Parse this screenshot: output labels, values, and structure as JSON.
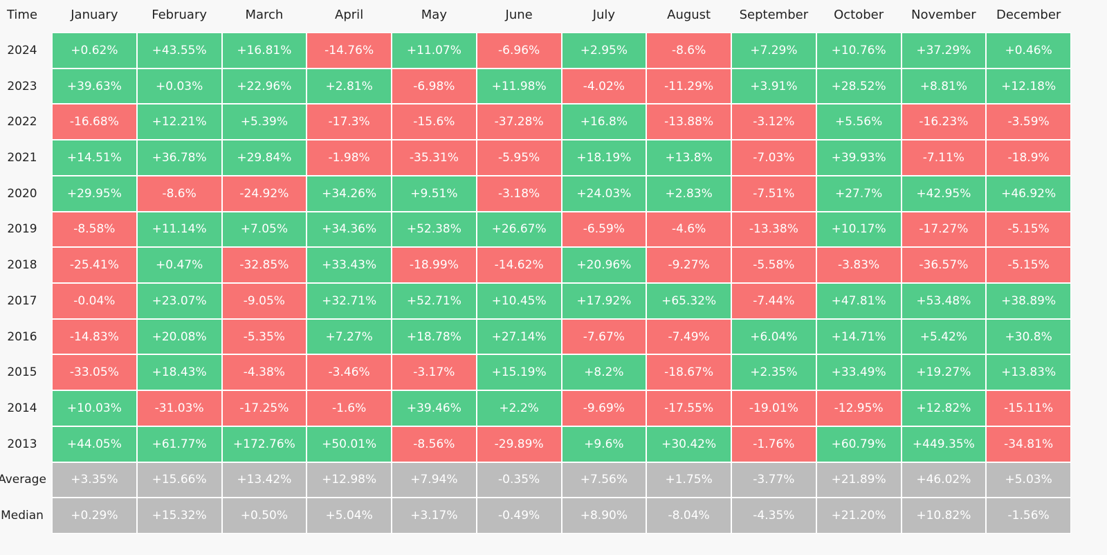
{
  "table": {
    "colors": {
      "up": "#52cc8a",
      "down": "#f87373",
      "summary": "#bcbcbc"
    },
    "header": [
      "Time",
      "January",
      "February",
      "March",
      "April",
      "May",
      "June",
      "July",
      "August",
      "September",
      "October",
      "November",
      "December"
    ],
    "rows": [
      [
        "2024",
        "+0.62%",
        "+43.55%",
        "+16.81%",
        "-14.76%",
        "+11.07%",
        "-6.96%",
        "+2.95%",
        "-8.6%",
        "+7.29%",
        "+10.76%",
        "+37.29%",
        "+0.46%"
      ],
      [
        "2023",
        "+39.63%",
        "+0.03%",
        "+22.96%",
        "+2.81%",
        "-6.98%",
        "+11.98%",
        "-4.02%",
        "-11.29%",
        "+3.91%",
        "+28.52%",
        "+8.81%",
        "+12.18%"
      ],
      [
        "2022",
        "-16.68%",
        "+12.21%",
        "+5.39%",
        "-17.3%",
        "-15.6%",
        "-37.28%",
        "+16.8%",
        "-13.88%",
        "-3.12%",
        "+5.56%",
        "-16.23%",
        "-3.59%"
      ],
      [
        "2021",
        "+14.51%",
        "+36.78%",
        "+29.84%",
        "-1.98%",
        "-35.31%",
        "-5.95%",
        "+18.19%",
        "+13.8%",
        "-7.03%",
        "+39.93%",
        "-7.11%",
        "-18.9%"
      ],
      [
        "2020",
        "+29.95%",
        "-8.6%",
        "-24.92%",
        "+34.26%",
        "+9.51%",
        "-3.18%",
        "+24.03%",
        "+2.83%",
        "-7.51%",
        "+27.7%",
        "+42.95%",
        "+46.92%"
      ],
      [
        "2019",
        "-8.58%",
        "+11.14%",
        "+7.05%",
        "+34.36%",
        "+52.38%",
        "+26.67%",
        "-6.59%",
        "-4.6%",
        "-13.38%",
        "+10.17%",
        "-17.27%",
        "-5.15%"
      ],
      [
        "2018",
        "-25.41%",
        "+0.47%",
        "-32.85%",
        "+33.43%",
        "-18.99%",
        "-14.62%",
        "+20.96%",
        "-9.27%",
        "-5.58%",
        "-3.83%",
        "-36.57%",
        "-5.15%"
      ],
      [
        "2017",
        "-0.04%",
        "+23.07%",
        "-9.05%",
        "+32.71%",
        "+52.71%",
        "+10.45%",
        "+17.92%",
        "+65.32%",
        "-7.44%",
        "+47.81%",
        "+53.48%",
        "+38.89%"
      ],
      [
        "2016",
        "-14.83%",
        "+20.08%",
        "-5.35%",
        "+7.27%",
        "+18.78%",
        "+27.14%",
        "-7.67%",
        "-7.49%",
        "+6.04%",
        "+14.71%",
        "+5.42%",
        "+30.8%"
      ],
      [
        "2015",
        "-33.05%",
        "+18.43%",
        "-4.38%",
        "-3.46%",
        "-3.17%",
        "+15.19%",
        "+8.2%",
        "-18.67%",
        "+2.35%",
        "+33.49%",
        "+19.27%",
        "+13.83%"
      ],
      [
        "2014",
        "+10.03%",
        "-31.03%",
        "-17.25%",
        "-1.6%",
        "+39.46%",
        "+2.2%",
        "-9.69%",
        "-17.55%",
        "-19.01%",
        "-12.95%",
        "+12.82%",
        "-15.11%"
      ],
      [
        "2013",
        "+44.05%",
        "+61.77%",
        "+172.76%",
        "+50.01%",
        "-8.56%",
        "-29.89%",
        "+9.6%",
        "+30.42%",
        "-1.76%",
        "+60.79%",
        "+449.35%",
        "-34.81%"
      ]
    ],
    "summary_rows": [
      [
        "Average",
        "+3.35%",
        "+15.66%",
        "+13.42%",
        "+12.98%",
        "+7.94%",
        "-0.35%",
        "+7.56%",
        "+1.75%",
        "-3.77%",
        "+21.89%",
        "+46.02%",
        "+5.03%"
      ],
      [
        "Median",
        "+0.29%",
        "+15.32%",
        "+0.50%",
        "+5.04%",
        "+3.17%",
        "-0.49%",
        "+8.90%",
        "-8.04%",
        "-4.35%",
        "+21.20%",
        "+10.82%",
        "-1.56%"
      ]
    ]
  }
}
